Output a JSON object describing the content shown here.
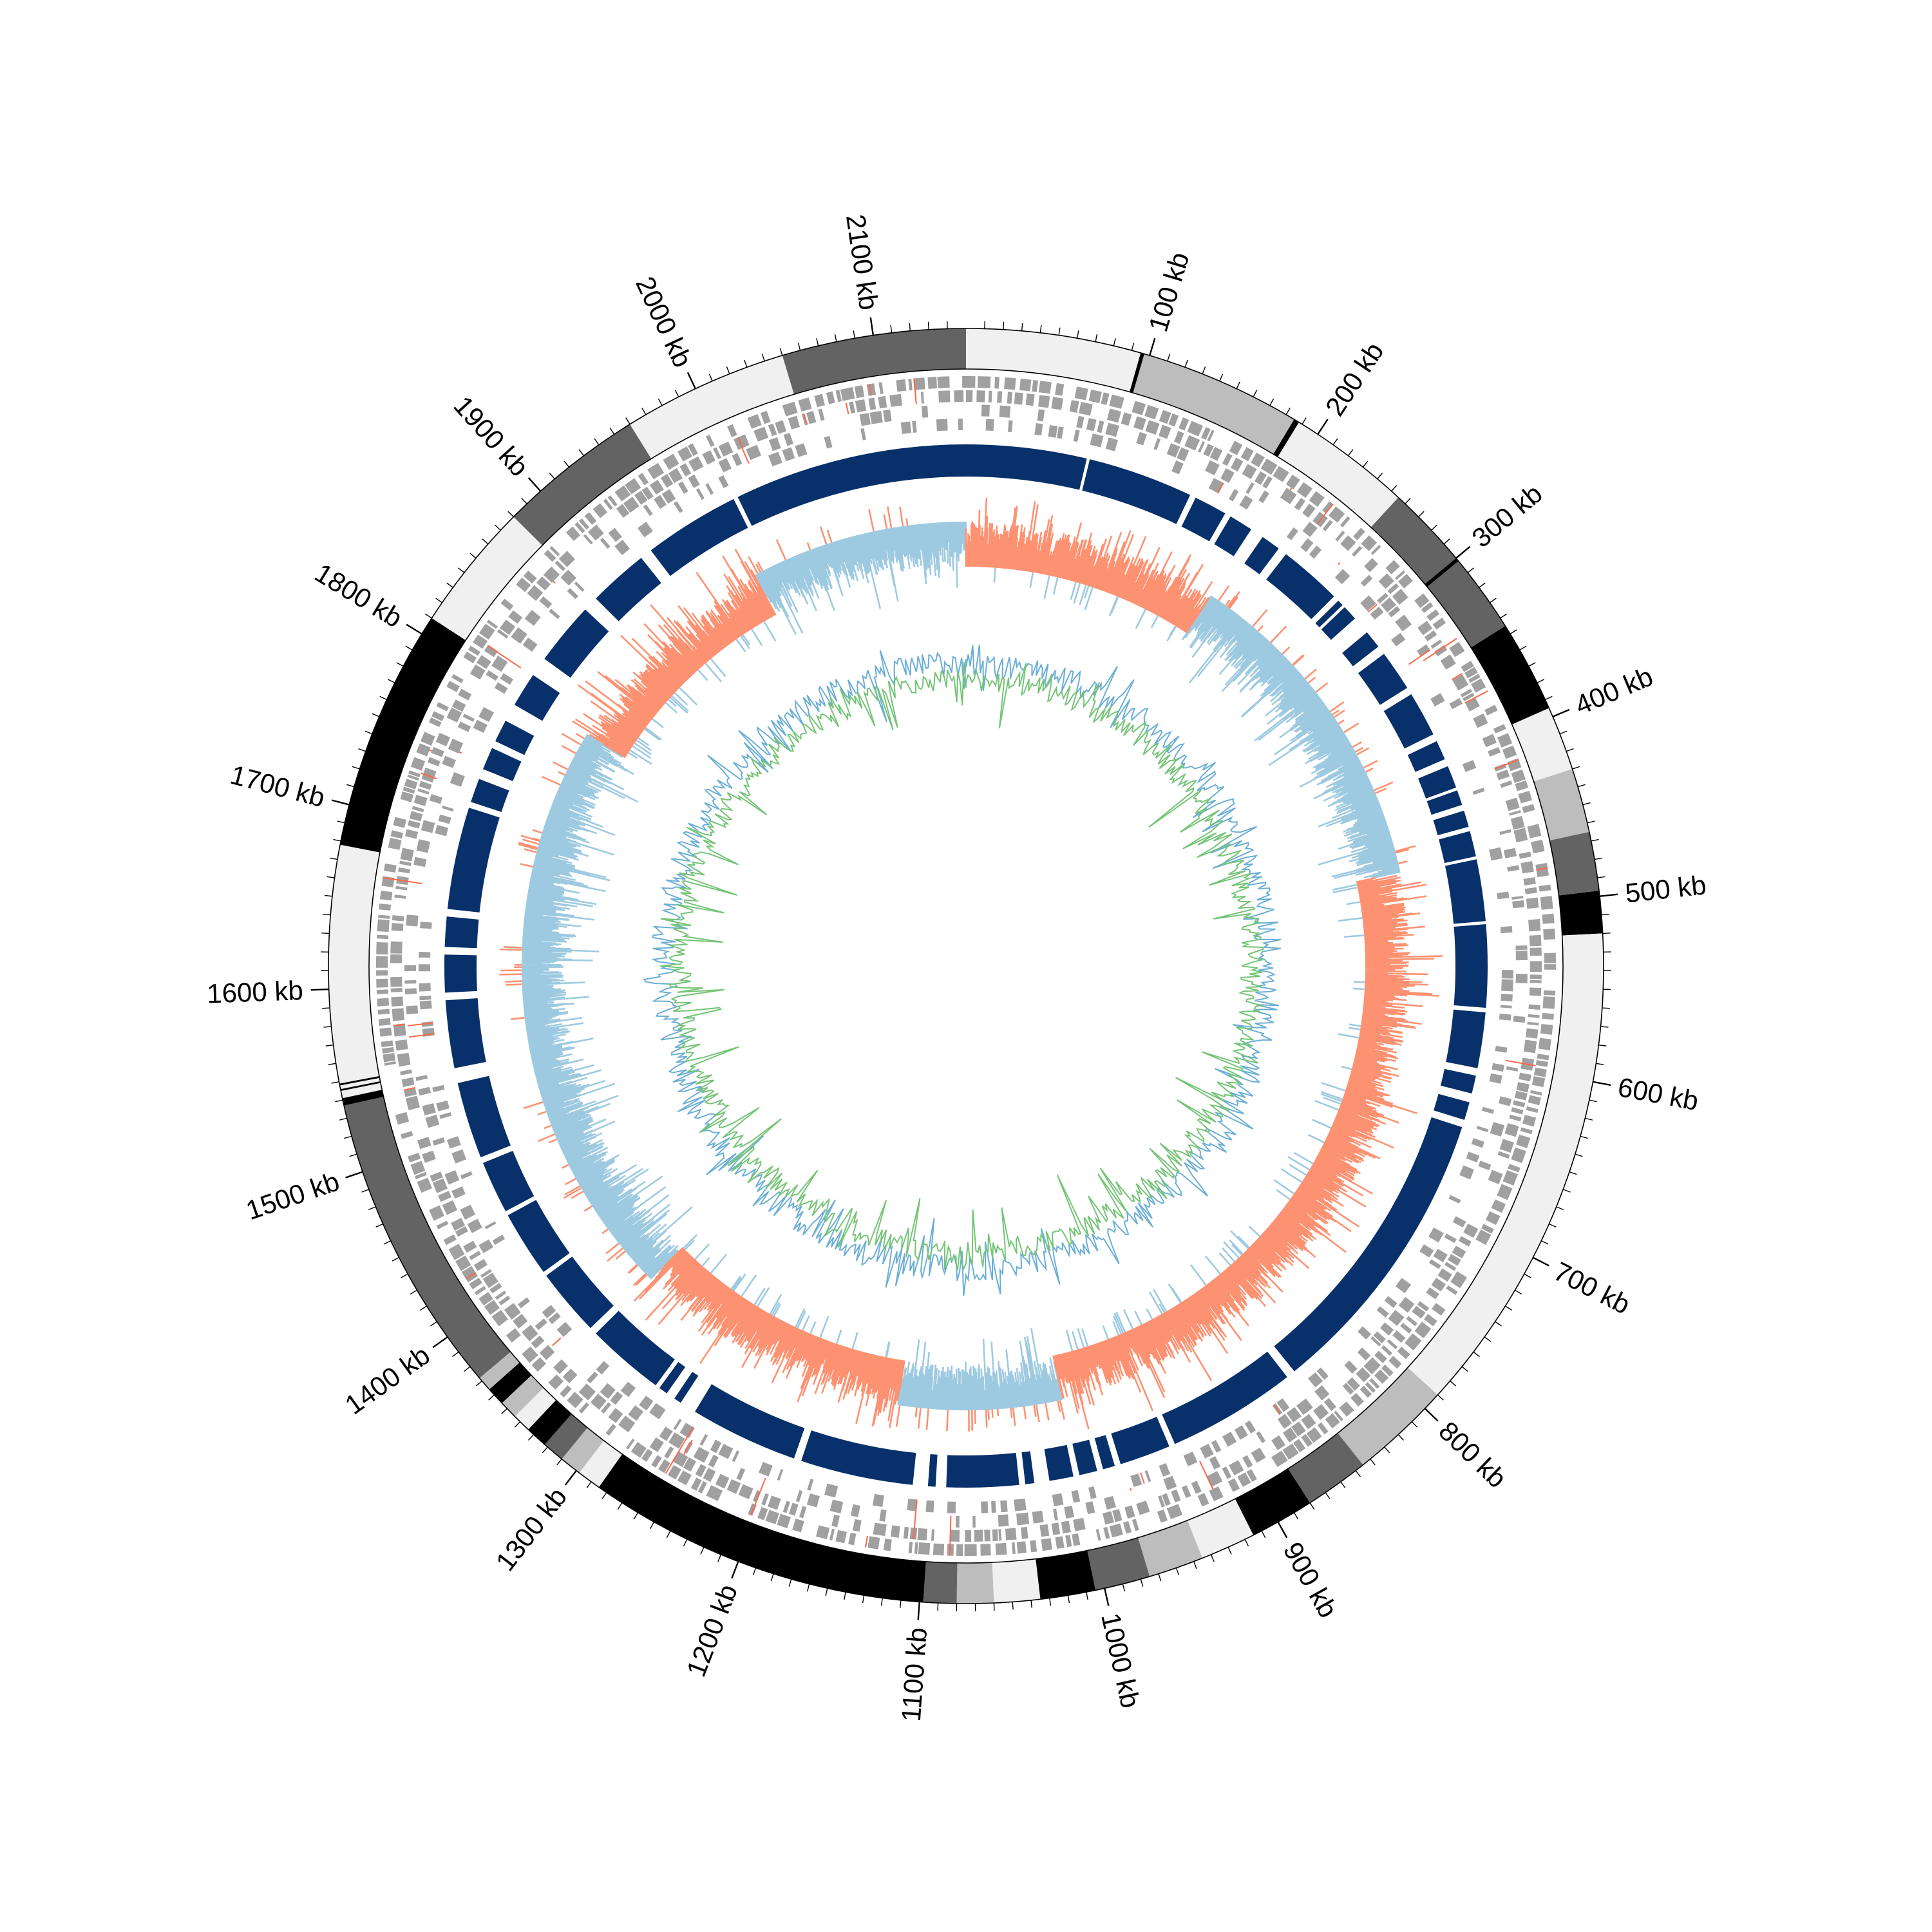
{
  "chart_data": {
    "type": "circular-genome",
    "genome_length_kb": 2150,
    "ticks": [
      {
        "pos_kb": 100,
        "label": "100 kb"
      },
      {
        "pos_kb": 200,
        "label": "200 kb"
      },
      {
        "pos_kb": 300,
        "label": "300 kb"
      },
      {
        "pos_kb": 400,
        "label": "400 kb"
      },
      {
        "pos_kb": 500,
        "label": "500 kb"
      },
      {
        "pos_kb": 600,
        "label": "600 kb"
      },
      {
        "pos_kb": 700,
        "label": "700 kb"
      },
      {
        "pos_kb": 800,
        "label": "800 kb"
      },
      {
        "pos_kb": 900,
        "label": "900 kb"
      },
      {
        "pos_kb": 1000,
        "label": "1000 kb"
      },
      {
        "pos_kb": 1100,
        "label": "1100 kb"
      },
      {
        "pos_kb": 1200,
        "label": "1200 kb"
      },
      {
        "pos_kb": 1300,
        "label": "1300 kb"
      },
      {
        "pos_kb": 1400,
        "label": "1400 kb"
      },
      {
        "pos_kb": 1500,
        "label": "1500 kb"
      },
      {
        "pos_kb": 1600,
        "label": "1600 kb"
      },
      {
        "pos_kb": 1700,
        "label": "1700 kb"
      },
      {
        "pos_kb": 1800,
        "label": "1800 kb"
      },
      {
        "pos_kb": 1900,
        "label": "1900 kb"
      },
      {
        "pos_kb": 2000,
        "label": "2000 kb"
      },
      {
        "pos_kb": 2100,
        "label": "2100 kb"
      }
    ],
    "minor_tick_step_kb": 10,
    "outer_segments": [
      {
        "start_kb": 0,
        "end_kb": 95,
        "color": "#f0f0f0"
      },
      {
        "start_kb": 95,
        "end_kb": 185,
        "color": "#bdbdbd"
      },
      {
        "start_kb": 185,
        "end_kb": 255,
        "color": "#f0f0f0"
      },
      {
        "start_kb": 255,
        "end_kb": 345,
        "color": "#636363"
      },
      {
        "start_kb": 345,
        "end_kb": 395,
        "color": "#000000"
      },
      {
        "start_kb": 395,
        "end_kb": 430,
        "color": "#f0f0f0"
      },
      {
        "start_kb": 430,
        "end_kb": 465,
        "color": "#bdbdbd"
      },
      {
        "start_kb": 465,
        "end_kb": 497,
        "color": "#636363"
      },
      {
        "start_kb": 497,
        "end_kb": 520,
        "color": "#000000"
      },
      {
        "start_kb": 520,
        "end_kb": 790,
        "color": "#f0f0f0"
      },
      {
        "start_kb": 790,
        "end_kb": 845,
        "color": "#bdbdbd"
      },
      {
        "start_kb": 845,
        "end_kb": 880,
        "color": "#636363"
      },
      {
        "start_kb": 880,
        "end_kb": 915,
        "color": "#000000"
      },
      {
        "start_kb": 915,
        "end_kb": 945,
        "color": "#f0f0f0"
      },
      {
        "start_kb": 945,
        "end_kb": 975,
        "color": "#bdbdbd"
      },
      {
        "start_kb": 975,
        "end_kb": 1005,
        "color": "#636363"
      },
      {
        "start_kb": 1005,
        "end_kb": 1035,
        "color": "#000000"
      },
      {
        "start_kb": 1035,
        "end_kb": 1060,
        "color": "#f0f0f0"
      },
      {
        "start_kb": 1060,
        "end_kb": 1080,
        "color": "#bdbdbd"
      },
      {
        "start_kb": 1080,
        "end_kb": 1098,
        "color": "#636363"
      },
      {
        "start_kb": 1098,
        "end_kb": 1285,
        "color": "#000000"
      },
      {
        "start_kb": 1285,
        "end_kb": 1298,
        "color": "#f0f0f0"
      },
      {
        "start_kb": 1298,
        "end_kb": 1310,
        "color": "#bdbdbd"
      },
      {
        "start_kb": 1310,
        "end_kb": 1322,
        "color": "#636363"
      },
      {
        "start_kb": 1322,
        "end_kb": 1334,
        "color": "#000000"
      },
      {
        "start_kb": 1334,
        "end_kb": 1344,
        "color": "#f0f0f0"
      },
      {
        "start_kb": 1344,
        "end_kb": 1354,
        "color": "#bdbdbd"
      },
      {
        "start_kb": 1354,
        "end_kb": 1364,
        "color": "#000000"
      },
      {
        "start_kb": 1364,
        "end_kb": 1372,
        "color": "#bdbdbd"
      },
      {
        "start_kb": 1372,
        "end_kb": 1538,
        "color": "#636363"
      },
      {
        "start_kb": 1538,
        "end_kb": 1680,
        "color": "#f0f0f0"
      },
      {
        "start_kb": 1680,
        "end_kb": 1810,
        "color": "#000000"
      },
      {
        "start_kb": 1810,
        "end_kb": 1880,
        "color": "#f0f0f0"
      },
      {
        "start_kb": 1880,
        "end_kb": 1960,
        "color": "#636363"
      },
      {
        "start_kb": 1960,
        "end_kb": 2050,
        "color": "#f0f0f0"
      },
      {
        "start_kb": 2050,
        "end_kb": 2150,
        "color": "#636363"
      }
    ],
    "blue_blocks": [
      [
        0,
        80
      ],
      [
        82,
        152
      ],
      [
        156,
        178
      ],
      [
        182,
        198
      ],
      [
        207,
        220
      ],
      [
        226,
        268
      ],
      [
        272,
        276
      ],
      [
        278,
        288
      ],
      [
        300,
        312
      ],
      [
        318,
        345
      ],
      [
        350,
        380
      ],
      [
        385,
        398
      ],
      [
        403,
        418
      ],
      [
        420,
        430
      ],
      [
        434,
        445
      ],
      [
        448,
        465
      ],
      [
        467,
        508
      ],
      [
        510,
        565
      ],
      [
        568,
        605
      ],
      [
        610,
        622
      ],
      [
        628,
        640
      ],
      [
        645,
        842
      ],
      [
        848,
        934
      ],
      [
        938,
        972
      ],
      [
        976,
        984
      ],
      [
        988,
        1000
      ],
      [
        1004,
        1020
      ],
      [
        1030,
        1036
      ],
      [
        1040,
        1088
      ],
      [
        1095,
        1100
      ],
      [
        1110,
        1185
      ],
      [
        1190,
        1262
      ],
      [
        1273,
        1278
      ],
      [
        1284,
        1290
      ],
      [
        1293,
        1345
      ],
      [
        1350,
        1395
      ],
      [
        1398,
        1442
      ],
      [
        1445,
        1480
      ],
      [
        1484,
        1535
      ],
      [
        1545,
        1590
      ],
      [
        1595,
        1620
      ],
      [
        1625,
        1645
      ],
      [
        1650,
        1718
      ],
      [
        1722,
        1738
      ],
      [
        1745,
        1760
      ],
      [
        1765,
        1780
      ],
      [
        1792,
        1815
      ],
      [
        1828,
        1870
      ],
      [
        1880,
        1920
      ],
      [
        1928,
        1992
      ],
      [
        1995,
        2150
      ]
    ],
    "gc_skew_negative_ranges_kb": [
      [
        0,
        200
      ],
      [
        465,
        1000
      ],
      [
        1128,
        1345
      ],
      [
        1800,
        1980
      ]
    ],
    "series": [
      {
        "name": "",
        "color": "#9ecae1"
      },
      {
        "name": "",
        "color": "#fc9272"
      },
      {
        "name": "",
        "color": "#6baed6"
      },
      {
        "name": "",
        "color": "#74c476"
      }
    ],
    "gene_color": "#a0a0a0",
    "rna_color": "#fb6a4a",
    "cds_color": "#08306b"
  }
}
